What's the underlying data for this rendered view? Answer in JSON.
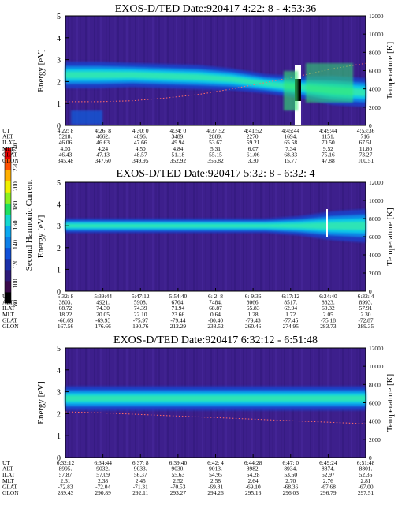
{
  "colorbar": {
    "label": "Second Harmonic Current",
    "ticks": [
      "80",
      "100",
      "120",
      "140",
      "160",
      "180",
      "200",
      "220",
      "240"
    ],
    "colors": [
      "#000000",
      "#3a0a4a",
      "#2d1a78",
      "#1a2fa8",
      "#1050d8",
      "#0d7fe8",
      "#0aa8f0",
      "#14d8d0",
      "#20e060",
      "#8cf020",
      "#f0f000",
      "#ffb000",
      "#ff5000",
      "#e80000"
    ]
  },
  "chart_data": [
    {
      "type": "heatmap",
      "title": "EXOS-D/TED   Date:920417   4:22: 8 - 4:53:36",
      "ylabel": "Energy [eV]",
      "y2label": "Temperature [K]",
      "ylim": [
        0,
        5
      ],
      "y2lim": [
        0,
        12000
      ],
      "yticks": [
        0,
        1,
        2,
        3,
        4,
        5
      ],
      "y2ticks": [
        0,
        2000,
        4000,
        6000,
        8000,
        10000,
        12000
      ],
      "band": {
        "center": [
          2.3,
          2.3,
          2.3,
          2.25,
          2.2,
          2.1,
          1.9,
          1.75,
          1.6,
          1.5
        ],
        "width": [
          0.55,
          0.55,
          0.5,
          0.5,
          0.5,
          0.45,
          0.4,
          0.45,
          0.6,
          0.6
        ]
      },
      "temperature_trace": [
        2600,
        2600,
        2700,
        3000,
        3400,
        4000,
        4700,
        5400,
        6200,
        6800
      ],
      "orbit": {
        "labels": [
          "UT",
          "ALT",
          "ILAT",
          "MLT",
          "GLAT",
          "GLON"
        ],
        "columns": [
          [
            "4:22: 8",
            "5218.",
            "46.06",
            "4.03",
            "46.43",
            "345.48"
          ],
          [
            "4:26: 8",
            "4662.",
            "46.63",
            "4.24",
            "47.13",
            "347.60"
          ],
          [
            "4:30: 0",
            "4096.",
            "47.66",
            "4.50",
            "48.57",
            "349.95"
          ],
          [
            "4:34: 0",
            "3489.",
            "49.94",
            "4.84",
            "51.18",
            "352.92"
          ],
          [
            "4:37:52",
            "2889.",
            "53.67",
            "5.31",
            "55.15",
            "356.82"
          ],
          [
            "4:41:52",
            "2270.",
            "59.21",
            "6.07",
            "61.06",
            "3.30"
          ],
          [
            "4:45:44",
            "1694.",
            "65.58",
            "7.34",
            "68.33",
            "15.77"
          ],
          [
            "4:49:44",
            "1151.",
            "70.50",
            "9.52",
            "75.16",
            "47.88"
          ],
          [
            "4:53:36",
            "716.",
            "67.51",
            "11.80",
            "73.27",
            "100.51"
          ]
        ]
      }
    },
    {
      "type": "heatmap",
      "title": "EXOS-D/TED   Date:920417   5:32: 8 - 6:32: 4",
      "ylabel": "Energy [eV]",
      "y2label": "Temperature [K]",
      "ylim": [
        0,
        5
      ],
      "y2lim": [
        0,
        12000
      ],
      "yticks": [
        0,
        1,
        2,
        3,
        4,
        5
      ],
      "y2ticks": [
        0,
        2000,
        4000,
        6000,
        8000,
        10000,
        12000
      ],
      "band": {
        "center": [
          3.0,
          3.0,
          3.0,
          3.0,
          3.0,
          3.0,
          3.0,
          3.0,
          3.0,
          3.0
        ],
        "width": [
          0.3,
          0.3,
          0.3,
          0.3,
          0.3,
          0.3,
          0.3,
          0.4,
          0.6,
          0.7
        ]
      },
      "temperature_trace": [],
      "orbit": {
        "labels": [
          "UT",
          "ALT",
          "ILAT",
          "MLT",
          "GLAT",
          "GLON"
        ],
        "columns": [
          [
            "5:32: 8",
            "3803.",
            "68.72",
            "18.22",
            "-60.69",
            "167.56"
          ],
          [
            "5:39:44",
            "4921.",
            "74.30",
            "20.05",
            "-69.93",
            "176.66"
          ],
          [
            "5:47:12",
            "5908.",
            "74.39",
            "22.10",
            "-75.97",
            "190.76"
          ],
          [
            "5:54:40",
            "6764.",
            "71.94",
            "23.66",
            "-79.44",
            "212.29"
          ],
          [
            "6: 2: 8",
            "7484.",
            "68.87",
            "0.64",
            "-80.40",
            "238.52"
          ],
          [
            "6: 9:36",
            "8066.",
            "65.83",
            "1.28",
            "-79.43",
            "260.46"
          ],
          [
            "6:17:12",
            "8517.",
            "62.94",
            "1.72",
            "-77.45",
            "274.95"
          ],
          [
            "6:24:40",
            "8823.",
            "60.32",
            "2.05",
            "-75.18",
            "283.73"
          ],
          [
            "6:32: 4",
            "8993.",
            "57.91",
            "2.30",
            "-72.87",
            "289.35"
          ]
        ]
      }
    },
    {
      "type": "heatmap",
      "title": "EXOS-D/TED   Date:920417   6:32:12 - 6:51:48",
      "ylabel": "Energy [eV]",
      "y2label": "Temperature [K]",
      "ylim": [
        0,
        5
      ],
      "y2lim": [
        0,
        12000
      ],
      "yticks": [
        0,
        1,
        2,
        3,
        4,
        5
      ],
      "y2ticks": [
        0,
        2000,
        4000,
        6000,
        8000,
        10000,
        12000
      ],
      "band": {
        "center": [
          2.7,
          2.7,
          2.7,
          2.7,
          2.7,
          2.7,
          2.7,
          2.7,
          2.7,
          2.7
        ],
        "width": [
          0.5,
          0.5,
          0.5,
          0.5,
          0.5,
          0.5,
          0.5,
          0.5,
          0.5,
          0.5
        ]
      },
      "temperature_trace": [
        5000,
        4900,
        4750,
        4600,
        4450,
        4300,
        4150,
        4000,
        3850,
        3700
      ],
      "orbit": {
        "labels": [
          "UT",
          "ALT",
          "ILAT",
          "MLT",
          "GLAT",
          "GLON"
        ],
        "columns": [
          [
            "6:32:12",
            "8995.",
            "57.87",
            "2.31",
            "-72.83",
            "289.43"
          ],
          [
            "6:34:44",
            "9032.",
            "57.09",
            "2.38",
            "-72.04",
            "290.89"
          ],
          [
            "6:37: 8",
            "9033.",
            "56.37",
            "2.45",
            "-71.31",
            "292.11"
          ],
          [
            "6:39:40",
            "9030.",
            "55.63",
            "2.52",
            "-70.53",
            "293.27"
          ],
          [
            "6:42: 4",
            "9013.",
            "54.95",
            "2.58",
            "-69.81",
            "294.26"
          ],
          [
            "6:44:28",
            "8982.",
            "54.28",
            "2.64",
            "-69.10",
            "295.16"
          ],
          [
            "6:47: 0",
            "8934.",
            "53.60",
            "2.70",
            "-68.36",
            "296.03"
          ],
          [
            "6:49:24",
            "8874.",
            "52.97",
            "2.76",
            "-67.68",
            "296.79"
          ],
          [
            "6:51:48",
            "8801.",
            "52.36",
            "2.81",
            "-67.00",
            "297.51"
          ]
        ]
      }
    }
  ]
}
